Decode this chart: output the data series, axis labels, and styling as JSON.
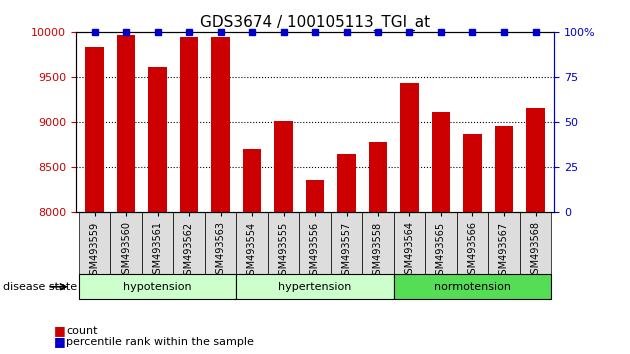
{
  "title": "GDS3674 / 100105113_TGI_at",
  "samples": [
    "GSM493559",
    "GSM493560",
    "GSM493561",
    "GSM493562",
    "GSM493563",
    "GSM493554",
    "GSM493555",
    "GSM493556",
    "GSM493557",
    "GSM493558",
    "GSM493564",
    "GSM493565",
    "GSM493566",
    "GSM493567",
    "GSM493568"
  ],
  "counts": [
    9830,
    9970,
    9610,
    9940,
    9940,
    8700,
    9010,
    8360,
    8650,
    8780,
    9430,
    9110,
    8870,
    8960,
    9160
  ],
  "bar_color": "#cc0000",
  "percentile_color": "#0000cc",
  "ylim_left": [
    8000,
    10000
  ],
  "ylim_right": [
    0,
    100
  ],
  "yticks_left": [
    8000,
    8500,
    9000,
    9500,
    10000
  ],
  "yticks_right": [
    0,
    25,
    50,
    75,
    100
  ],
  "background_color": "white",
  "bar_width": 0.6,
  "legend_count_label": "count",
  "legend_pct_label": "percentile rank within the sample",
  "disease_state_label": "disease state",
  "group_data": [
    {
      "name": "hypotension",
      "start": 0,
      "end": 5,
      "color": "#ccffcc"
    },
    {
      "name": "hypertension",
      "start": 5,
      "end": 10,
      "color": "#ccffcc"
    },
    {
      "name": "normotension",
      "start": 10,
      "end": 15,
      "color": "#55dd55"
    }
  ]
}
